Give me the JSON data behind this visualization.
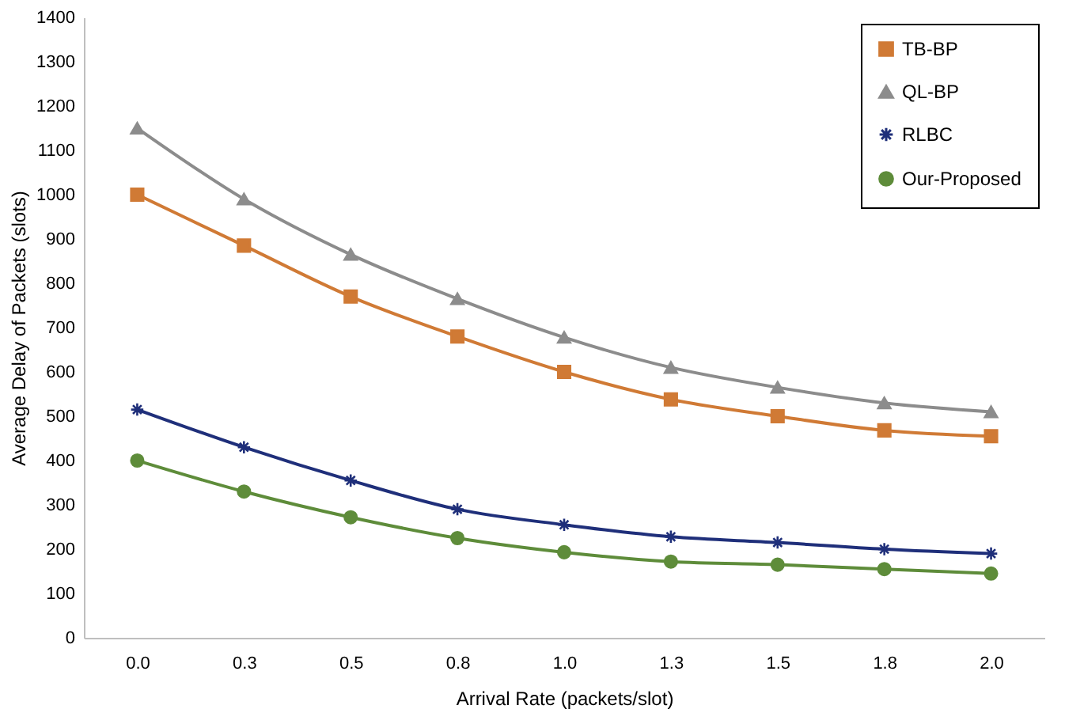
{
  "chart_data": {
    "type": "line",
    "xlabel": "Arrival Rate (packets/slot)",
    "ylabel": "Average Delay of Packets (slots)",
    "categories": [
      "0.0",
      "0.3",
      "0.5",
      "0.8",
      "1.0",
      "1.3",
      "1.5",
      "1.8",
      "2.0"
    ],
    "ylim": [
      0,
      1400
    ],
    "yticks": [
      0,
      100,
      200,
      300,
      400,
      500,
      600,
      700,
      800,
      900,
      1000,
      1100,
      1200,
      1300,
      1400
    ],
    "grid": false,
    "legend": "top right",
    "series": [
      {
        "name": "TB-BP",
        "color": "#d07a35",
        "marker": "square",
        "values": [
          1000,
          885,
          770,
          680,
          600,
          538,
          500,
          468,
          455
        ]
      },
      {
        "name": "QL-BP",
        "color": "#8c8c8c",
        "marker": "triangle",
        "values": [
          1150,
          990,
          865,
          765,
          678,
          610,
          565,
          530,
          510
        ]
      },
      {
        "name": "RLBC",
        "color": "#1f2f7a",
        "marker": "cross",
        "values": [
          515,
          430,
          355,
          290,
          255,
          228,
          215,
          200,
          190
        ]
      },
      {
        "name": "Our-Proposed",
        "color": "#5e8c3a",
        "marker": "circle",
        "values": [
          400,
          330,
          272,
          225,
          193,
          172,
          165,
          155,
          145
        ]
      }
    ]
  }
}
